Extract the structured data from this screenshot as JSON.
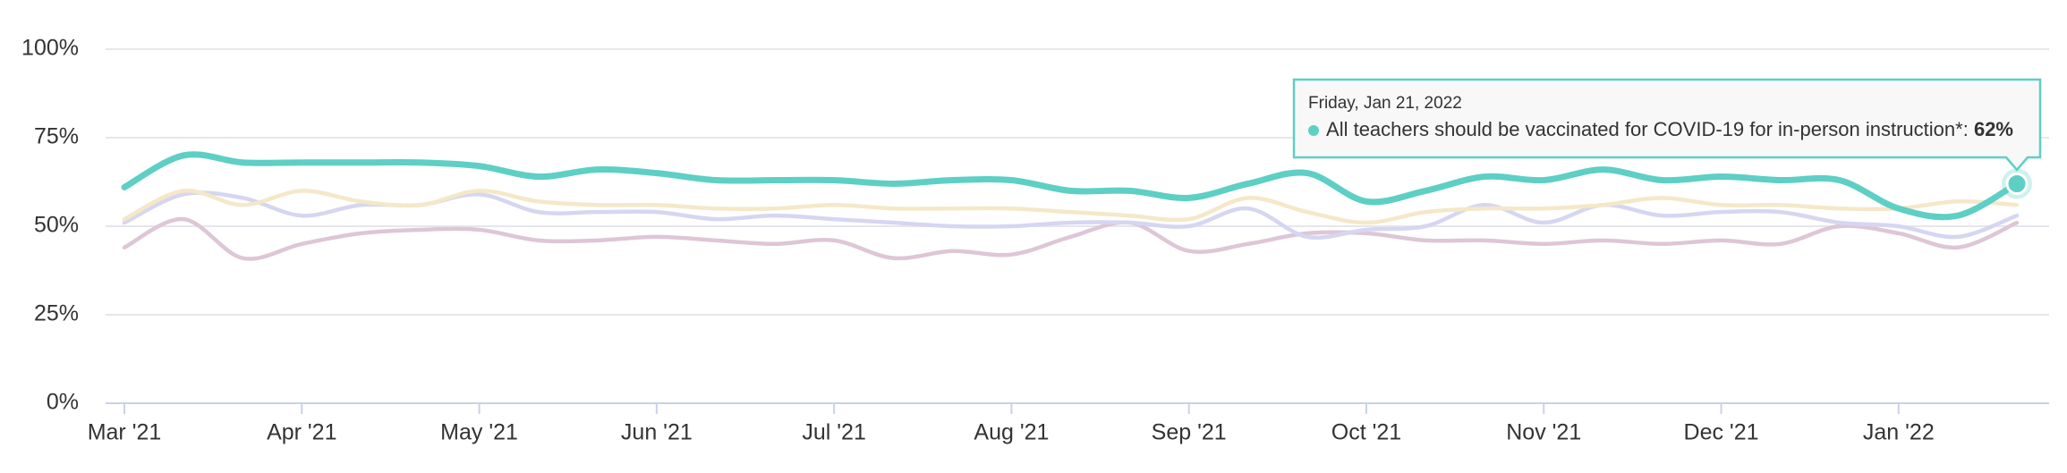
{
  "chart_data": {
    "type": "line",
    "categories": [
      "Mar '21",
      null,
      null,
      "Apr '21",
      null,
      null,
      "May '21",
      null,
      null,
      "Jun '21",
      null,
      null,
      "Jul '21",
      null,
      null,
      "Aug '21",
      null,
      null,
      "Sep '21",
      null,
      null,
      "Oct '21",
      null,
      null,
      "Nov '21",
      null,
      null,
      "Dec '21",
      null,
      null,
      "Jan '22",
      null,
      null
    ],
    "series": [
      {
        "name": "All teachers should be vaccinated for COVID-19 for in-person instruction*",
        "color": "#5ecfc4",
        "values": [
          61,
          70,
          68,
          68,
          68,
          68,
          67,
          64,
          66,
          65,
          63,
          63,
          63,
          62,
          63,
          63,
          60,
          60,
          58,
          62,
          65,
          57,
          60,
          64,
          63,
          66,
          63,
          64,
          63,
          63,
          55,
          53,
          62
        ]
      },
      {
        "color": "#f5e8c8",
        "values": [
          52,
          60,
          56,
          60,
          57,
          56,
          60,
          57,
          56,
          56,
          55,
          55,
          56,
          55,
          55,
          55,
          54,
          53,
          52,
          58,
          54,
          51,
          54,
          55,
          55,
          56,
          58,
          56,
          56,
          55,
          55,
          57,
          56
        ]
      },
      {
        "color": "#d6d6f2",
        "values": [
          51,
          59,
          58,
          53,
          56,
          56,
          59,
          54,
          54,
          54,
          52,
          53,
          52,
          51,
          50,
          50,
          51,
          51,
          50,
          55,
          47,
          49,
          50,
          56,
          51,
          56,
          53,
          54,
          54,
          51,
          50,
          47,
          53
        ]
      },
      {
        "color": "#dec6d6",
        "values": [
          44,
          52,
          41,
          45,
          48,
          49,
          49,
          46,
          46,
          47,
          46,
          45,
          46,
          41,
          43,
          42,
          47,
          51,
          43,
          45,
          48,
          48,
          46,
          46,
          45,
          46,
          45,
          46,
          45,
          50,
          48,
          44,
          51
        ]
      }
    ],
    "ylim": [
      0,
      100
    ],
    "yticks": [
      {
        "value": 0,
        "label": "0%"
      },
      {
        "value": 25,
        "label": "25%"
      },
      {
        "value": 50,
        "label": "50%"
      },
      {
        "value": 75,
        "label": "75%"
      },
      {
        "value": 100,
        "label": "100%"
      }
    ],
    "grid": true,
    "tooltip": {
      "date": "Friday, Jan 21, 2022",
      "separator": ":",
      "value_label": "62%"
    }
  }
}
